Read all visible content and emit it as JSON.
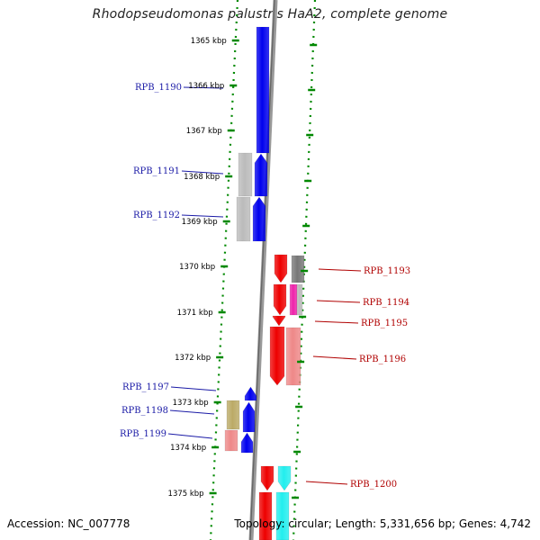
{
  "title": "Rhodopseudomonas palustris HaA2, complete genome",
  "accession": "Accession: NC_007778",
  "summary": "Topology: circular; Length: 5,331,656 bp; Genes: 4,742",
  "colors": {
    "forward_label": "#1a1aa6",
    "reverse_label": "#b00000",
    "blue": "#0000ee",
    "red": "#ee0000",
    "gray": "#bbbbbb",
    "dark_gray": "#777777",
    "pink": "#ee8888",
    "magenta": "#ee22aa",
    "olive": "#bbaa66",
    "cyan": "#22eeee",
    "tick": "#008800"
  },
  "ticks": [
    "1365 kbp",
    "1366 kbp",
    "1367 kbp",
    "1368 kbp",
    "1369 kbp",
    "1370 kbp",
    "1371 kbp",
    "1372 kbp",
    "1373 kbp",
    "1374 kbp",
    "1375 kbp"
  ],
  "labels": {
    "forward": [
      "RPB_1190",
      "RPB_1191",
      "RPB_1192",
      "RPB_1197",
      "RPB_1198",
      "RPB_1199"
    ],
    "reverse": [
      "RPB_1193",
      "RPB_1194",
      "RPB_1195",
      "RPB_1196",
      "RPB_1200"
    ]
  }
}
